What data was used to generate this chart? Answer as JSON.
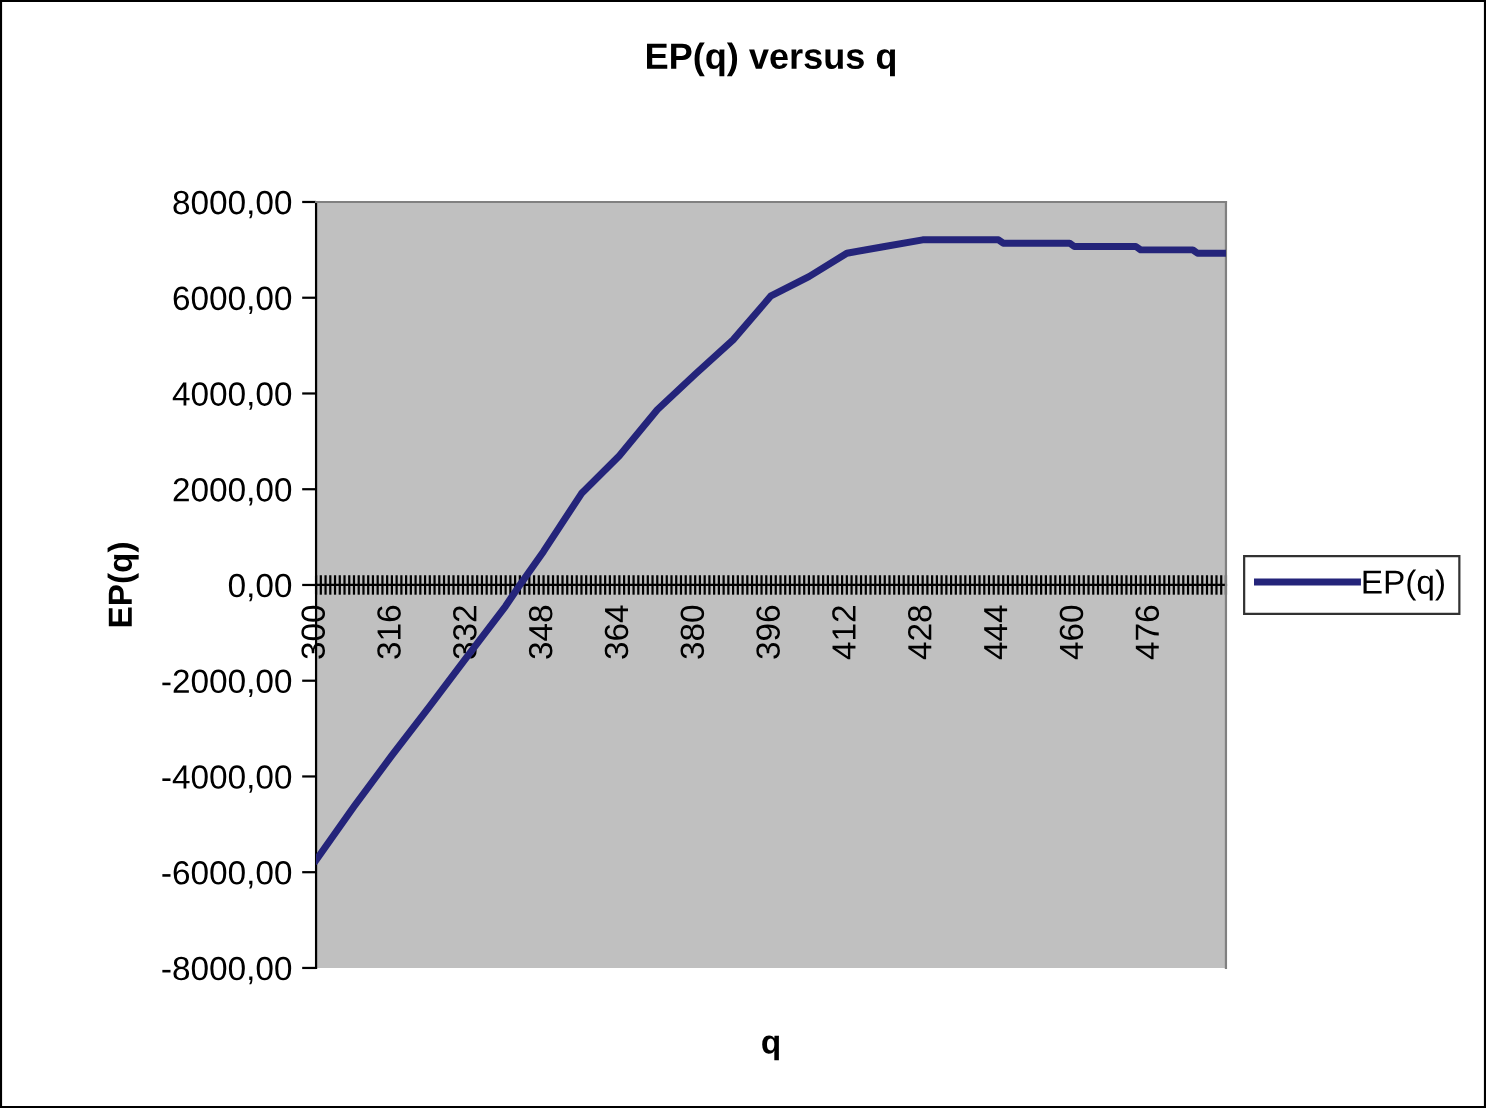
{
  "chart_data": {
    "type": "line",
    "title": "EP(q) versus q",
    "xlabel": "q",
    "ylabel": "EP(q)",
    "xlim": [
      300,
      492
    ],
    "xticks": [
      300,
      316,
      332,
      348,
      364,
      380,
      396,
      412,
      428,
      444,
      460,
      476
    ],
    "ylim": [
      -8000,
      8000
    ],
    "yticks": [
      {
        "value": -8000,
        "label": "-8000,00"
      },
      {
        "value": -6000,
        "label": "-6000,00"
      },
      {
        "value": -4000,
        "label": "-4000,00"
      },
      {
        "value": -2000,
        "label": "-2000,00"
      },
      {
        "value": 0,
        "label": "0,00"
      },
      {
        "value": 2000,
        "label": "2000,00"
      },
      {
        "value": 4000,
        "label": "4000,00"
      },
      {
        "value": 6000,
        "label": "6000,00"
      },
      {
        "value": 8000,
        "label": "8000,00"
      }
    ],
    "grid": false,
    "legend": "right",
    "marker": "none",
    "line_style": "solid",
    "series": [
      {
        "name": "EP(q)",
        "color": "#24247a",
        "x": [
          300,
          308,
          316,
          324,
          332,
          340,
          343,
          348,
          356,
          364,
          372,
          380,
          388,
          396,
          404,
          412,
          420,
          428,
          444,
          445,
          459,
          460,
          473,
          474,
          485,
          486,
          492
        ],
        "values": [
          -5750,
          -4630,
          -3560,
          -2530,
          -1480,
          -440,
          0,
          700,
          1910,
          2700,
          3660,
          4400,
          5120,
          6040,
          6440,
          6930,
          7070,
          7210,
          7210,
          7140,
          7140,
          7070,
          7070,
          7000,
          7000,
          6930,
          6930
        ]
      }
    ]
  }
}
